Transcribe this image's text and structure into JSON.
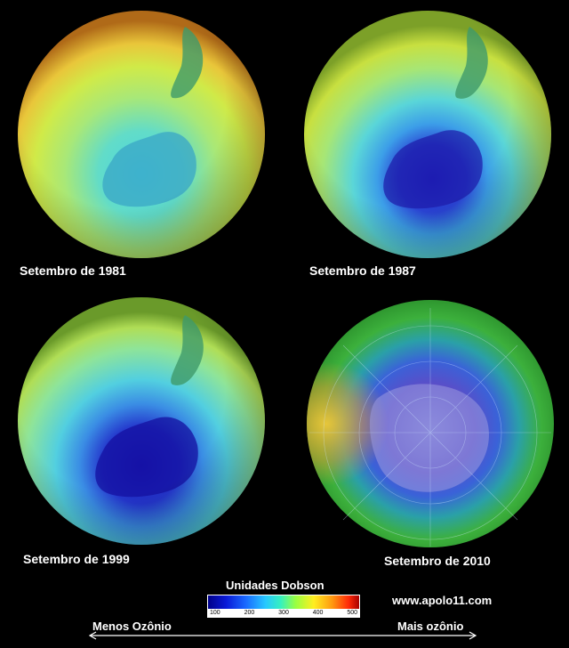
{
  "panels": [
    {
      "caption": "Setembro de 1981"
    },
    {
      "caption": "Setembro de 1987"
    },
    {
      "caption": "Setembro de 1999"
    },
    {
      "caption": "Setembro de 2010"
    }
  ],
  "legend": {
    "title": "Unidades Dobson",
    "ticks": [
      "100",
      "200",
      "300",
      "400",
      "500"
    ],
    "less_label": "Menos Ozônio",
    "more_label": "Mais ozônio"
  },
  "source": "www.apolo11.com"
}
